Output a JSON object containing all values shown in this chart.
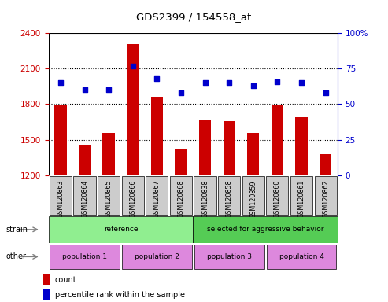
{
  "title": "GDS2399 / 154558_at",
  "samples": [
    "GSM120863",
    "GSM120864",
    "GSM120865",
    "GSM120866",
    "GSM120867",
    "GSM120868",
    "GSM120838",
    "GSM120858",
    "GSM120859",
    "GSM120860",
    "GSM120861",
    "GSM120862"
  ],
  "counts": [
    1790,
    1460,
    1560,
    2310,
    1860,
    1420,
    1670,
    1660,
    1560,
    1790,
    1690,
    1380
  ],
  "percentile_ranks": [
    65,
    60,
    60,
    77,
    68,
    58,
    65,
    65,
    63,
    66,
    65,
    58
  ],
  "ylim_left": [
    1200,
    2400
  ],
  "ylim_right": [
    0,
    100
  ],
  "yticks_left": [
    1200,
    1500,
    1800,
    2100,
    2400
  ],
  "yticks_right": [
    0,
    25,
    50,
    75,
    100
  ],
  "bar_color": "#CC0000",
  "scatter_color": "#0000CC",
  "strain_groups": [
    {
      "label": "reference",
      "start": 0,
      "end": 6,
      "color": "#90EE90"
    },
    {
      "label": "selected for aggressive behavior",
      "start": 6,
      "end": 12,
      "color": "#55CC55"
    }
  ],
  "other_groups": [
    {
      "label": "population 1",
      "start": 0,
      "end": 3,
      "color": "#DD88DD"
    },
    {
      "label": "population 2",
      "start": 3,
      "end": 6,
      "color": "#DD88DD"
    },
    {
      "label": "population 3",
      "start": 6,
      "end": 9,
      "color": "#DD88DD"
    },
    {
      "label": "population 4",
      "start": 9,
      "end": 12,
      "color": "#DD88DD"
    }
  ],
  "strain_label": "strain",
  "other_label": "other",
  "legend_count_label": "count",
  "legend_percentile_label": "percentile rank within the sample",
  "left_axis_color": "#CC0000",
  "right_axis_color": "#0000CC",
  "grid_color": "#000000",
  "background_color": "#ffffff",
  "tick_bg_color": "#CCCCCC",
  "ytick_grid_values": [
    1500,
    1800,
    2100
  ]
}
